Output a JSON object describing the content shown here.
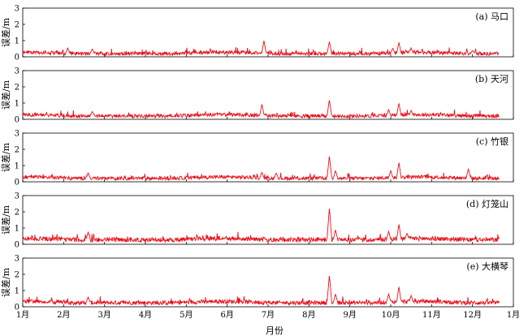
{
  "chart_data": {
    "type": "line",
    "xlabel": "月份",
    "x_ticks": [
      "1月",
      "2月",
      "3月",
      "4月",
      "5月",
      "6月",
      "7月",
      "8月",
      "9月",
      "10月",
      "11月",
      "12月",
      "1月"
    ],
    "x_range_months": [
      0,
      12
    ],
    "y_ticks": [
      0,
      1,
      2,
      3
    ],
    "grid": false,
    "line_color": "#e8101a",
    "panels": [
      {
        "label": "(a) 马口",
        "ylabel": "误差/m",
        "ylim": [
          0,
          3
        ],
        "baseline": 0.15,
        "amplitude": 0.22,
        "peaks": [
          {
            "x": 1.1,
            "y": 0.55
          },
          {
            "x": 1.7,
            "y": 0.5
          },
          {
            "x": 5.9,
            "y": 1.0
          },
          {
            "x": 7.5,
            "y": 0.95
          },
          {
            "x": 9.05,
            "y": 0.55
          },
          {
            "x": 9.2,
            "y": 0.9
          },
          {
            "x": 9.5,
            "y": 0.55
          },
          {
            "x": 11.0,
            "y": 0.4
          }
        ]
      },
      {
        "label": "(b) 天河",
        "ylabel": "误差/m",
        "ylim": [
          0,
          3
        ],
        "baseline": 0.16,
        "amplitude": 0.22,
        "peaks": [
          {
            "x": 1.7,
            "y": 0.5
          },
          {
            "x": 5.85,
            "y": 0.95
          },
          {
            "x": 7.5,
            "y": 1.2
          },
          {
            "x": 8.95,
            "y": 0.6
          },
          {
            "x": 9.2,
            "y": 1.0
          },
          {
            "x": 9.5,
            "y": 0.55
          }
        ]
      },
      {
        "label": "(c) 竹银",
        "ylabel": "误差/m",
        "ylim": [
          0,
          3
        ],
        "baseline": 0.17,
        "amplitude": 0.22,
        "peaks": [
          {
            "x": 1.6,
            "y": 0.55
          },
          {
            "x": 5.85,
            "y": 0.6
          },
          {
            "x": 6.2,
            "y": 0.55
          },
          {
            "x": 7.5,
            "y": 1.6
          },
          {
            "x": 7.65,
            "y": 0.7
          },
          {
            "x": 9.2,
            "y": 1.2
          },
          {
            "x": 9.0,
            "y": 0.7
          },
          {
            "x": 10.9,
            "y": 0.8
          }
        ]
      },
      {
        "label": "(d) 灯笼山",
        "ylabel": "误差/m",
        "ylim": [
          0,
          3
        ],
        "baseline": 0.22,
        "amplitude": 0.28,
        "peaks": [
          {
            "x": 1.6,
            "y": 0.75
          },
          {
            "x": 7.5,
            "y": 2.25
          },
          {
            "x": 7.65,
            "y": 0.9
          },
          {
            "x": 8.95,
            "y": 0.8
          },
          {
            "x": 9.2,
            "y": 1.25
          },
          {
            "x": 9.4,
            "y": 0.7
          }
        ]
      },
      {
        "label": "(e) 大横琴",
        "ylabel": "误差/m",
        "ylim": [
          0,
          3
        ],
        "baseline": 0.2,
        "amplitude": 0.25,
        "peaks": [
          {
            "x": 1.6,
            "y": 0.6
          },
          {
            "x": 7.5,
            "y": 1.95
          },
          {
            "x": 7.65,
            "y": 0.8
          },
          {
            "x": 8.95,
            "y": 0.8
          },
          {
            "x": 9.2,
            "y": 1.25
          },
          {
            "x": 9.5,
            "y": 0.7
          }
        ]
      }
    ]
  }
}
